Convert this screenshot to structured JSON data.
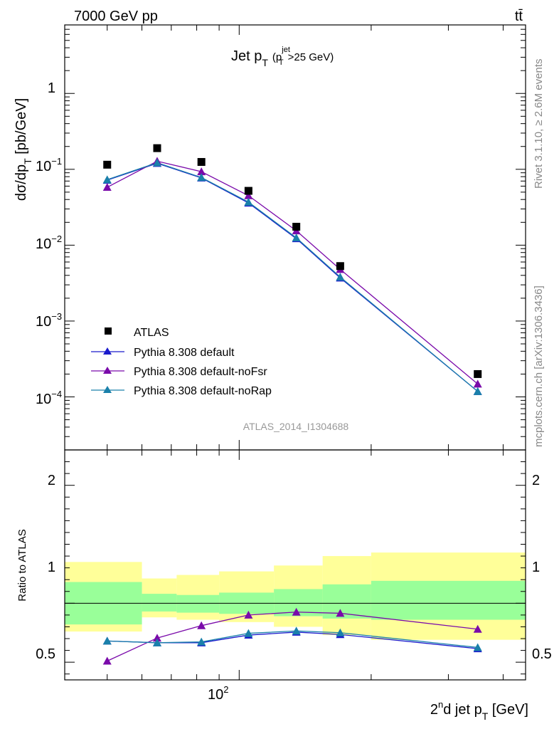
{
  "header": {
    "energy_label": "7000 GeV pp",
    "process_label": "tt̄"
  },
  "side_labels": {
    "rivet": "Rivet 3.1.10, ≥ 2.6M events",
    "mcplots": "mcplots.cern.ch [arXiv:1306.3436]"
  },
  "main_panel": {
    "title_main": "Jet p",
    "title_sub_T": "T",
    "title_paren_open": "(p",
    "title_sup_jet": "jet",
    "title_sub_T2": "T",
    "title_cut": ">25 GeV)",
    "ylabel_main": "dσ/dp",
    "ylabel_sub": "T",
    "ylabel_unit": " [pb/GeV]",
    "analysis_id": "ATLAS_2014_I1304688",
    "ytick_1": "1",
    "ytick_base": "10",
    "ytick_exp_1": "−1",
    "ytick_exp_2": "−2",
    "ytick_exp_3": "−3",
    "ytick_exp_4": "−4"
  },
  "ratio_panel": {
    "ylabel": "Ratio to ATLAS",
    "tick_2": "2",
    "tick_1": "1",
    "tick_05": "0.5"
  },
  "x_axis": {
    "label_pre": "2",
    "label_sup": "n",
    "label_mid": "d jet p",
    "label_sub": "T",
    "label_unit": " [GeV]",
    "tick_base": "10",
    "tick_exp": "2"
  },
  "legend": {
    "atlas": "ATLAS",
    "default": "Pythia 8.308 default",
    "nofsr": "Pythia 8.308 default-noFsr",
    "norap": "Pythia 8.308 default-noRap"
  },
  "colors": {
    "default": "#1a1acc",
    "nofsr": "#7a0aaa",
    "norap": "#1a80aa",
    "band_inner": "#99ff99",
    "band_outer": "#ffff99"
  },
  "chart_data": {
    "type": "line",
    "xscale": "log",
    "xlim": [
      40,
      450
    ],
    "main": {
      "yscale": "log",
      "ylim": [
        2e-05,
        8
      ],
      "data": {
        "name": "ATLAS",
        "x": [
          50,
          65,
          82,
          105,
          135,
          170,
          350
        ],
        "y": [
          0.115,
          0.19,
          0.125,
          0.052,
          0.0175,
          0.0053,
          0.0002
        ]
      },
      "series": [
        {
          "name": "Pythia 8.308 default",
          "x": [
            50,
            65,
            82,
            105,
            135,
            170,
            350
          ],
          "y": [
            0.072,
            0.12,
            0.077,
            0.036,
            0.0122,
            0.0037,
            0.000118
          ]
        },
        {
          "name": "Pythia 8.308 default-noFsr",
          "x": [
            50,
            65,
            82,
            105,
            135,
            170,
            350
          ],
          "y": [
            0.058,
            0.128,
            0.093,
            0.045,
            0.0155,
            0.0048,
            0.000148
          ]
        },
        {
          "name": "Pythia 8.308 default-noRap",
          "x": [
            50,
            65,
            82,
            105,
            135,
            170,
            350
          ],
          "y": [
            0.073,
            0.122,
            0.078,
            0.037,
            0.0125,
            0.0038,
            0.000118
          ]
        }
      ]
    },
    "ratio": {
      "ylim": [
        0.35,
        2.3
      ],
      "bins": [
        40,
        60,
        72,
        90,
        120,
        155,
        200,
        450
      ],
      "band_inner": [
        [
          0.82,
          1.18
        ],
        [
          0.93,
          1.08
        ],
        [
          0.92,
          1.07
        ],
        [
          0.91,
          1.09
        ],
        [
          0.89,
          1.12
        ],
        [
          0.87,
          1.16
        ],
        [
          0.86,
          1.19
        ]
      ],
      "band_outer": [
        [
          0.76,
          1.35
        ],
        [
          0.88,
          1.21
        ],
        [
          0.86,
          1.24
        ],
        [
          0.84,
          1.27
        ],
        [
          0.8,
          1.32
        ],
        [
          0.73,
          1.4
        ],
        [
          0.69,
          1.43
        ]
      ],
      "series": [
        {
          "name": "Pythia 8.308 default",
          "x": [
            50,
            65,
            82,
            105,
            135,
            170,
            350
          ],
          "y": [
            0.68,
            0.665,
            0.665,
            0.73,
            0.755,
            0.735,
            0.615
          ]
        },
        {
          "name": "Pythia 8.308 default-noFsr",
          "x": [
            50,
            65,
            82,
            105,
            135,
            170,
            350
          ],
          "y": [
            0.51,
            0.705,
            0.81,
            0.9,
            0.925,
            0.915,
            0.78
          ]
        },
        {
          "name": "Pythia 8.308 default-noRap",
          "x": [
            50,
            65,
            82,
            105,
            135,
            170,
            350
          ],
          "y": [
            0.68,
            0.665,
            0.672,
            0.745,
            0.765,
            0.75,
            0.625
          ]
        }
      ]
    }
  }
}
